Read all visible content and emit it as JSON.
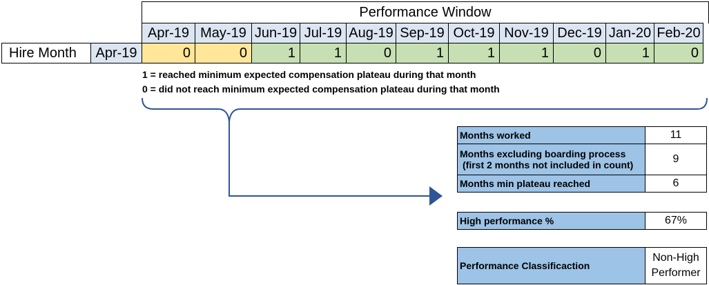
{
  "performance_window": {
    "title": "Performance Window",
    "months": [
      "Apr-19",
      "May-19",
      "Jun-19",
      "Jul-19",
      "Aug-19",
      "Sep-19",
      "Oct-19",
      "Nov-19",
      "Dec-19",
      "Jan-20",
      "Feb-20"
    ],
    "values": [
      "0",
      "0",
      "1",
      "1",
      "0",
      "1",
      "1",
      "1",
      "0",
      "1",
      "0"
    ],
    "onboarding_count": 2
  },
  "hire": {
    "label": "Hire Month",
    "month": "Apr-19"
  },
  "legend": {
    "line1": "1 = reached minimum expected compensation plateau during that month",
    "line2": "0 = did not reach minimum expected compensation plateau during that month"
  },
  "summary": {
    "months_worked_label": "Months worked",
    "months_worked_value": "11",
    "months_excl_label_1": "Months excluding boarding process",
    "months_excl_label_2": "(first 2 months not included in count)",
    "months_excl_value": "9",
    "plateau_label": "Months min plateau reached",
    "plateau_value": "6",
    "high_perf_label": "High performance %",
    "high_perf_value": "67%",
    "classification_label": "Performance Classificaction",
    "classification_value_1": "Non-High",
    "classification_value_2": "Performer"
  },
  "colors": {
    "header": "#dce6f2",
    "onboarding": "#ffe699",
    "counted": "#c6e0b4",
    "summary_label": "#9dc3e6",
    "arrow": "#2f5597"
  }
}
